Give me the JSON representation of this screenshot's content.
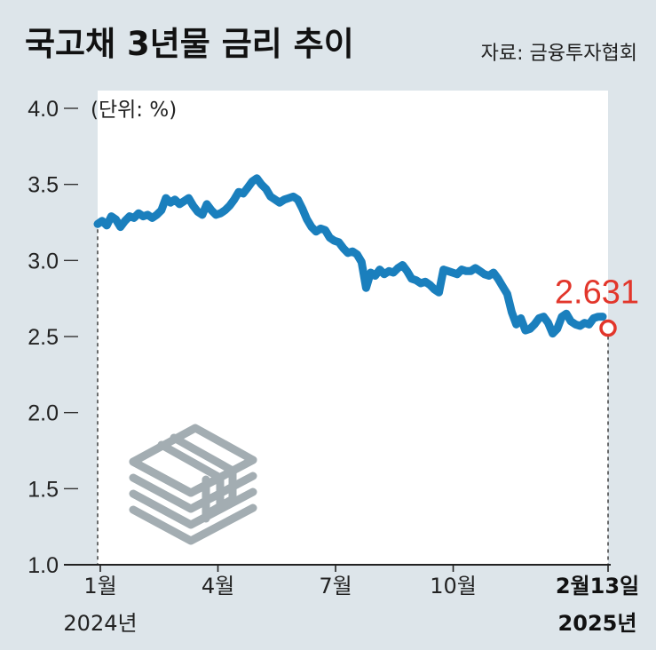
{
  "title": "국고채 3년물 금리 추이",
  "source": "자료: 금융투자협회",
  "unit_label": "(단위: %)",
  "colors": {
    "background": "#dde5ea",
    "plot_area": "#ffffff",
    "line": "#1a7fbd",
    "highlight": "#e2362b",
    "icon": "#a3adb2"
  },
  "decoration": {
    "icon": "stacked-bonds-icon"
  },
  "chart_data": {
    "type": "line",
    "title": "국고채 3년물 금리 추이",
    "unit": "%",
    "ylim": [
      1.0,
      4.0
    ],
    "y_ticks": [
      "4.0",
      "3.5",
      "3.0",
      "2.5",
      "2.0",
      "1.5",
      "1.0"
    ],
    "x_labels": [
      {
        "label": "1월",
        "year": "2024년",
        "bold": false
      },
      {
        "label": "4월",
        "year": "",
        "bold": false
      },
      {
        "label": "7월",
        "year": "",
        "bold": false
      },
      {
        "label": "10월",
        "year": "",
        "bold": false
      },
      {
        "label": "2월13일",
        "year": "2025년",
        "bold": true
      }
    ],
    "x_range": [
      "2024-01",
      "2025-02-13"
    ],
    "last_value_label": "2.631",
    "series": [
      {
        "values": [
          3.24,
          3.26,
          3.23,
          3.29,
          3.27,
          3.22,
          3.26,
          3.29,
          3.28,
          3.31,
          3.29,
          3.3,
          3.28,
          3.3,
          3.33,
          3.41,
          3.38,
          3.4,
          3.37,
          3.39,
          3.41,
          3.36,
          3.32,
          3.3,
          3.37,
          3.33,
          3.3,
          3.31,
          3.33,
          3.36,
          3.4,
          3.45,
          3.44,
          3.48,
          3.52,
          3.54,
          3.5,
          3.47,
          3.42,
          3.4,
          3.38,
          3.4,
          3.41,
          3.42,
          3.4,
          3.34,
          3.27,
          3.22,
          3.19,
          3.21,
          3.2,
          3.15,
          3.13,
          3.12,
          3.08,
          3.05,
          3.06,
          3.04,
          2.99,
          2.82,
          2.92,
          2.9,
          2.94,
          2.91,
          2.93,
          2.92,
          2.95,
          2.97,
          2.93,
          2.88,
          2.87,
          2.85,
          2.86,
          2.84,
          2.81,
          2.79,
          2.94,
          2.93,
          2.92,
          2.91,
          2.94,
          2.93,
          2.93,
          2.95,
          2.93,
          2.91,
          2.9,
          2.92,
          2.88,
          2.83,
          2.78,
          2.66,
          2.58,
          2.62,
          2.54,
          2.55,
          2.58,
          2.62,
          2.63,
          2.59,
          2.52,
          2.55,
          2.63,
          2.65,
          2.6,
          2.58,
          2.57,
          2.59,
          2.58,
          2.62,
          2.63,
          2.631
        ]
      }
    ],
    "grid": false,
    "legend": "none"
  }
}
